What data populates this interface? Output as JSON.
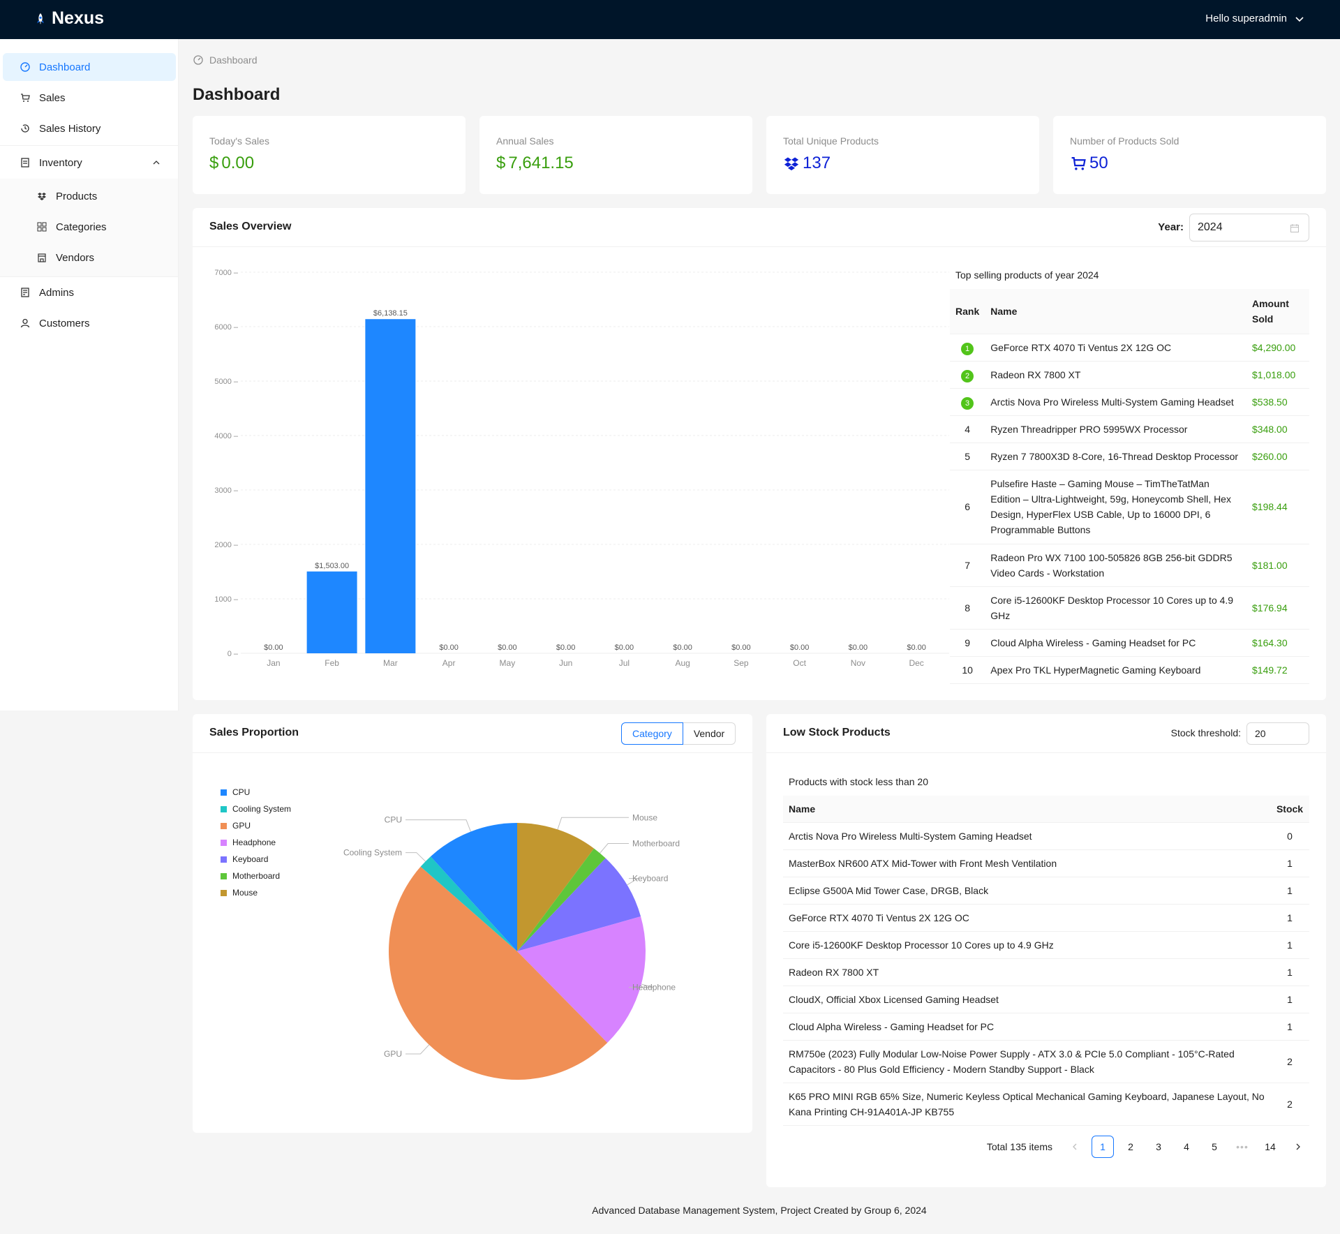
{
  "app": {
    "brand": "Nexus",
    "user": "Hello superadmin"
  },
  "sidebar": {
    "items": [
      {
        "label": "Dashboard",
        "icon": "dashboard-icon"
      },
      {
        "label": "Sales",
        "icon": "cart-icon"
      },
      {
        "label": "Sales History",
        "icon": "history-icon"
      },
      {
        "label": "Inventory",
        "icon": "inventory-icon"
      },
      {
        "label": "Products",
        "icon": "dropbox-icon"
      },
      {
        "label": "Categories",
        "icon": "categories-icon"
      },
      {
        "label": "Vendors",
        "icon": "shop-icon"
      },
      {
        "label": "Admins",
        "icon": "admins-icon"
      },
      {
        "label": "Customers",
        "icon": "user-icon"
      }
    ]
  },
  "breadcrumb": "Dashboard",
  "page_title": "Dashboard",
  "stats": [
    {
      "label": "Today's Sales",
      "prefix": "$",
      "value": "0.00",
      "color": "#389e0d"
    },
    {
      "label": "Annual Sales",
      "prefix": "$",
      "value": "7,641.15",
      "color": "#389e0d"
    },
    {
      "label": "Total Unique Products",
      "value": "137",
      "color": "#0d21d6"
    },
    {
      "label": "Number of Products Sold",
      "value": "50",
      "color": "#0d21d6"
    }
  ],
  "overview": {
    "title": "Sales Overview",
    "year_label": "Year:",
    "year": "2024",
    "top_caption": "Top selling products of year 2024"
  },
  "top_table": {
    "headers": [
      "Rank",
      "Name",
      "Amount Sold"
    ],
    "rows": [
      {
        "rank": "1",
        "name": "GeForce RTX 4070 Ti Ventus 2X 12G OC",
        "amount": "$4,290.00"
      },
      {
        "rank": "2",
        "name": "Radeon RX 7800 XT",
        "amount": "$1,018.00"
      },
      {
        "rank": "3",
        "name": "Arctis Nova Pro Wireless Multi-System Gaming Headset",
        "amount": "$538.50"
      },
      {
        "rank": "4",
        "name": "Ryzen Threadripper PRO 5995WX Processor",
        "amount": "$348.00"
      },
      {
        "rank": "5",
        "name": "Ryzen 7 7800X3D 8-Core, 16-Thread Desktop Processor",
        "amount": "$260.00"
      },
      {
        "rank": "6",
        "name": "Pulsefire Haste – Gaming Mouse – TimTheTatMan Edition – Ultra-Lightweight, 59g, Honeycomb Shell, Hex Design, HyperFlex USB Cable, Up to 16000 DPI, 6 Programmable Buttons",
        "amount": "$198.44"
      },
      {
        "rank": "7",
        "name": "Radeon Pro WX 7100 100-505826 8GB 256-bit GDDR5 Video Cards - Workstation",
        "amount": "$181.00"
      },
      {
        "rank": "8",
        "name": "Core i5-12600KF Desktop Processor 10 Cores up to 4.9 GHz",
        "amount": "$176.94"
      },
      {
        "rank": "9",
        "name": "Cloud Alpha Wireless - Gaming Headset for PC",
        "amount": "$164.30"
      },
      {
        "rank": "10",
        "name": "Apex Pro TKL HyperMagnetic Gaming Keyboard",
        "amount": "$149.72"
      }
    ]
  },
  "proportion": {
    "title": "Sales Proportion",
    "tab_category": "Category",
    "tab_vendor": "Vendor"
  },
  "low_stock": {
    "title": "Low Stock Products",
    "threshold_label": "Stock threshold:",
    "threshold": "20",
    "caption": "Products with stock less than 20",
    "headers": [
      "Name",
      "Stock"
    ],
    "rows": [
      {
        "name": "Arctis Nova Pro Wireless Multi-System Gaming Headset",
        "stock": "0"
      },
      {
        "name": "MasterBox NR600 ATX Mid-Tower with Front Mesh Ventilation",
        "stock": "1"
      },
      {
        "name": "Eclipse G500A Mid Tower Case, DRGB, Black",
        "stock": "1"
      },
      {
        "name": "GeForce RTX 4070 Ti Ventus 2X 12G OC",
        "stock": "1"
      },
      {
        "name": "Core i5-12600KF Desktop Processor 10 Cores up to 4.9 GHz",
        "stock": "1"
      },
      {
        "name": "Radeon RX 7800 XT",
        "stock": "1"
      },
      {
        "name": "CloudX, Official Xbox Licensed Gaming Headset",
        "stock": "1"
      },
      {
        "name": "Cloud Alpha Wireless - Gaming Headset for PC",
        "stock": "1"
      },
      {
        "name": "RM750e (2023) Fully Modular Low-Noise Power Supply - ATX 3.0 & PCIe 5.0 Compliant - 105°C-Rated Capacitors - 80 Plus Gold Efficiency - Modern Standby Support - Black",
        "stock": "2"
      },
      {
        "name": "K65 PRO MINI RGB 65% Size, Numeric Keyless Optical Mechanical Gaming Keyboard, Japanese Layout, No Kana Printing CH-91A401A-JP KB755",
        "stock": "2"
      }
    ],
    "pagination": {
      "total": "Total 135 items",
      "pages": [
        "1",
        "2",
        "3",
        "4",
        "5"
      ],
      "ellipsis": "•••",
      "last": "14",
      "current": "1"
    }
  },
  "footer": "Advanced Database Management System, Project Created by Group 6, 2024",
  "chart_data": [
    {
      "type": "bar",
      "categories": [
        "Jan",
        "Feb",
        "Mar",
        "Apr",
        "May",
        "Jun",
        "Jul",
        "Aug",
        "Sep",
        "Oct",
        "Nov",
        "Dec"
      ],
      "values": [
        0,
        1503,
        6138.15,
        0,
        0,
        0,
        0,
        0,
        0,
        0,
        0,
        0
      ],
      "data_labels": [
        "$0.00",
        "$1,503.00",
        "$6,138.15",
        "$0.00",
        "$0.00",
        "$0.00",
        "$0.00",
        "$0.00",
        "$0.00",
        "$0.00",
        "$0.00",
        "$0.00"
      ],
      "yticks": [
        0,
        1000,
        2000,
        3000,
        4000,
        5000,
        6000,
        7000
      ],
      "ylim": [
        0,
        7000
      ],
      "grid": true,
      "color": "#1e87ff"
    },
    {
      "type": "pie",
      "labels": [
        "CPU",
        "Cooling System",
        "GPU",
        "Headphone",
        "Keyboard",
        "Motherboard",
        "Mouse"
      ],
      "values": [
        11.3,
        1.7,
        46.9,
        16.3,
        8.2,
        1.8,
        9.8
      ],
      "colors": [
        "#1e87ff",
        "#1fc6c6",
        "#f08f55",
        "#d783ff",
        "#7b73ff",
        "#5ec63a",
        "#c2972f"
      ],
      "legend": "left"
    }
  ]
}
